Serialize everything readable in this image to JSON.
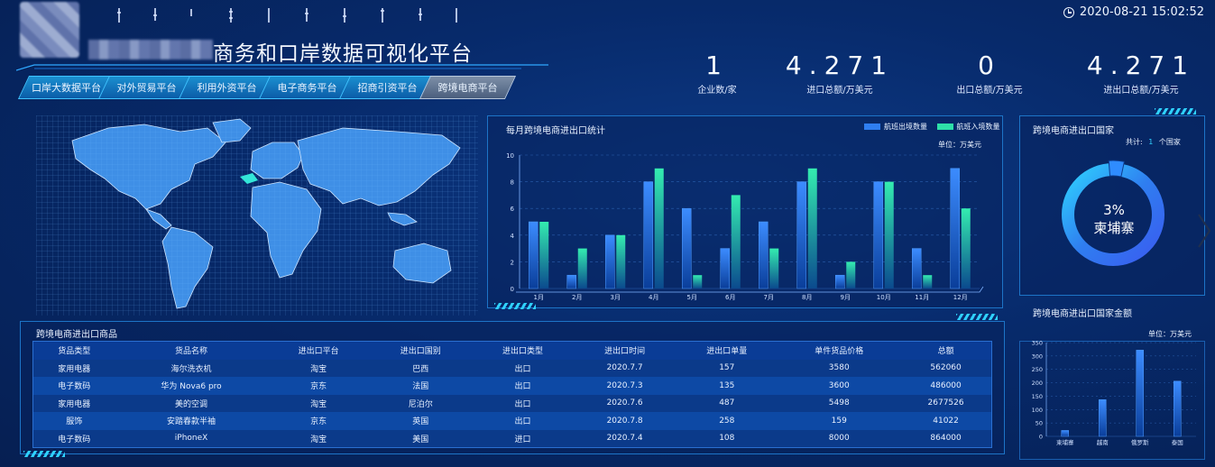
{
  "header": {
    "title": "商务和口岸数据可视化平台",
    "datetime": "2020-08-21  15:02:52"
  },
  "tabs": [
    {
      "label": "口岸大数据平台",
      "active": false
    },
    {
      "label": "对外贸易平台",
      "active": false
    },
    {
      "label": "利用外资平台",
      "active": false
    },
    {
      "label": "电子商务平台",
      "active": false
    },
    {
      "label": "招商引资平台",
      "active": false
    },
    {
      "label": "跨境电商平台",
      "active": true
    }
  ],
  "kpis": [
    {
      "value": "1",
      "label": "企业数/家"
    },
    {
      "value": "4.271",
      "label": "进口总额/万美元"
    },
    {
      "value": "0",
      "label": "出口总额/万美元"
    },
    {
      "value": "4.271",
      "label": "进出口总额/万美元"
    }
  ],
  "monthly_panel": {
    "title": "每月跨境电商进出口统计",
    "unit": "单位：万美元",
    "legend": [
      "航班出境数量",
      "航班入境数量"
    ]
  },
  "country_panel": {
    "title": "跨境电商进出口国家",
    "total_prefix": "共计:",
    "total_value": "1",
    "total_suffix": "个国家",
    "donut_percent": "3%",
    "donut_country": "柬埔寨"
  },
  "amount_panel": {
    "title": "跨境电商进出口国家金额",
    "unit": "单位：万美元"
  },
  "goods_panel": {
    "title": "跨境电商进出口商品",
    "columns": [
      "货品类型",
      "货品名称",
      "进出口平台",
      "进出口国别",
      "进出口类型",
      "进出口时间",
      "进出口单量",
      "单件货品价格",
      "总额"
    ],
    "rows": [
      [
        "家用电器",
        "海尔洗衣机",
        "淘宝",
        "巴西",
        "出口",
        "2020.7.7",
        "157",
        "3580",
        "562060"
      ],
      [
        "电子数码",
        "华为 Nova6 pro",
        "京东",
        "法国",
        "出口",
        "2020.7.3",
        "135",
        "3600",
        "486000"
      ],
      [
        "家用电器",
        "美的空调",
        "淘宝",
        "尼泊尔",
        "出口",
        "2020.7.6",
        "487",
        "5498",
        "2677526"
      ],
      [
        "服饰",
        "安踏春款半袖",
        "京东",
        "英国",
        "出口",
        "2020.7.8",
        "258",
        "159",
        "41022"
      ],
      [
        "电子数码",
        "iPhoneX",
        "淘宝",
        "美国",
        "进口",
        "2020.7.4",
        "108",
        "8000",
        "864000"
      ]
    ]
  },
  "colors": {
    "series_out": "#2f7ef0",
    "series_in": "#2ee0a8",
    "accent": "#2fd1ff"
  },
  "chart_data": [
    {
      "type": "bar",
      "title": "每月跨境电商进出口统计",
      "categories": [
        "1月",
        "2月",
        "3月",
        "4月",
        "5月",
        "6月",
        "7月",
        "8月",
        "9月",
        "10月",
        "11月",
        "12月"
      ],
      "series": [
        {
          "name": "航班出境数量",
          "values": [
            5,
            1,
            4,
            8,
            6,
            3,
            5,
            8,
            1,
            8,
            3,
            9
          ]
        },
        {
          "name": "航班入境数量",
          "values": [
            5,
            3,
            4,
            9,
            1,
            7,
            3,
            9,
            2,
            8,
            1,
            6
          ]
        }
      ],
      "ylim": [
        0,
        10
      ],
      "yticks": [
        0,
        2,
        4,
        6,
        8,
        10
      ],
      "grid": true,
      "legend": "top-right"
    },
    {
      "type": "pie",
      "title": "跨境电商进出口国家",
      "categories": [
        "柬埔寨"
      ],
      "values": [
        3
      ]
    },
    {
      "type": "bar",
      "title": "跨境电商进出口国家金额",
      "categories": [
        "柬埔寨",
        "越南",
        "俄罗斯",
        "泰国"
      ],
      "values": [
        22,
        137,
        322,
        206
      ],
      "ylim": [
        0,
        350
      ],
      "yticks": [
        0,
        50,
        100,
        150,
        200,
        250,
        300,
        350
      ],
      "grid": true
    }
  ]
}
